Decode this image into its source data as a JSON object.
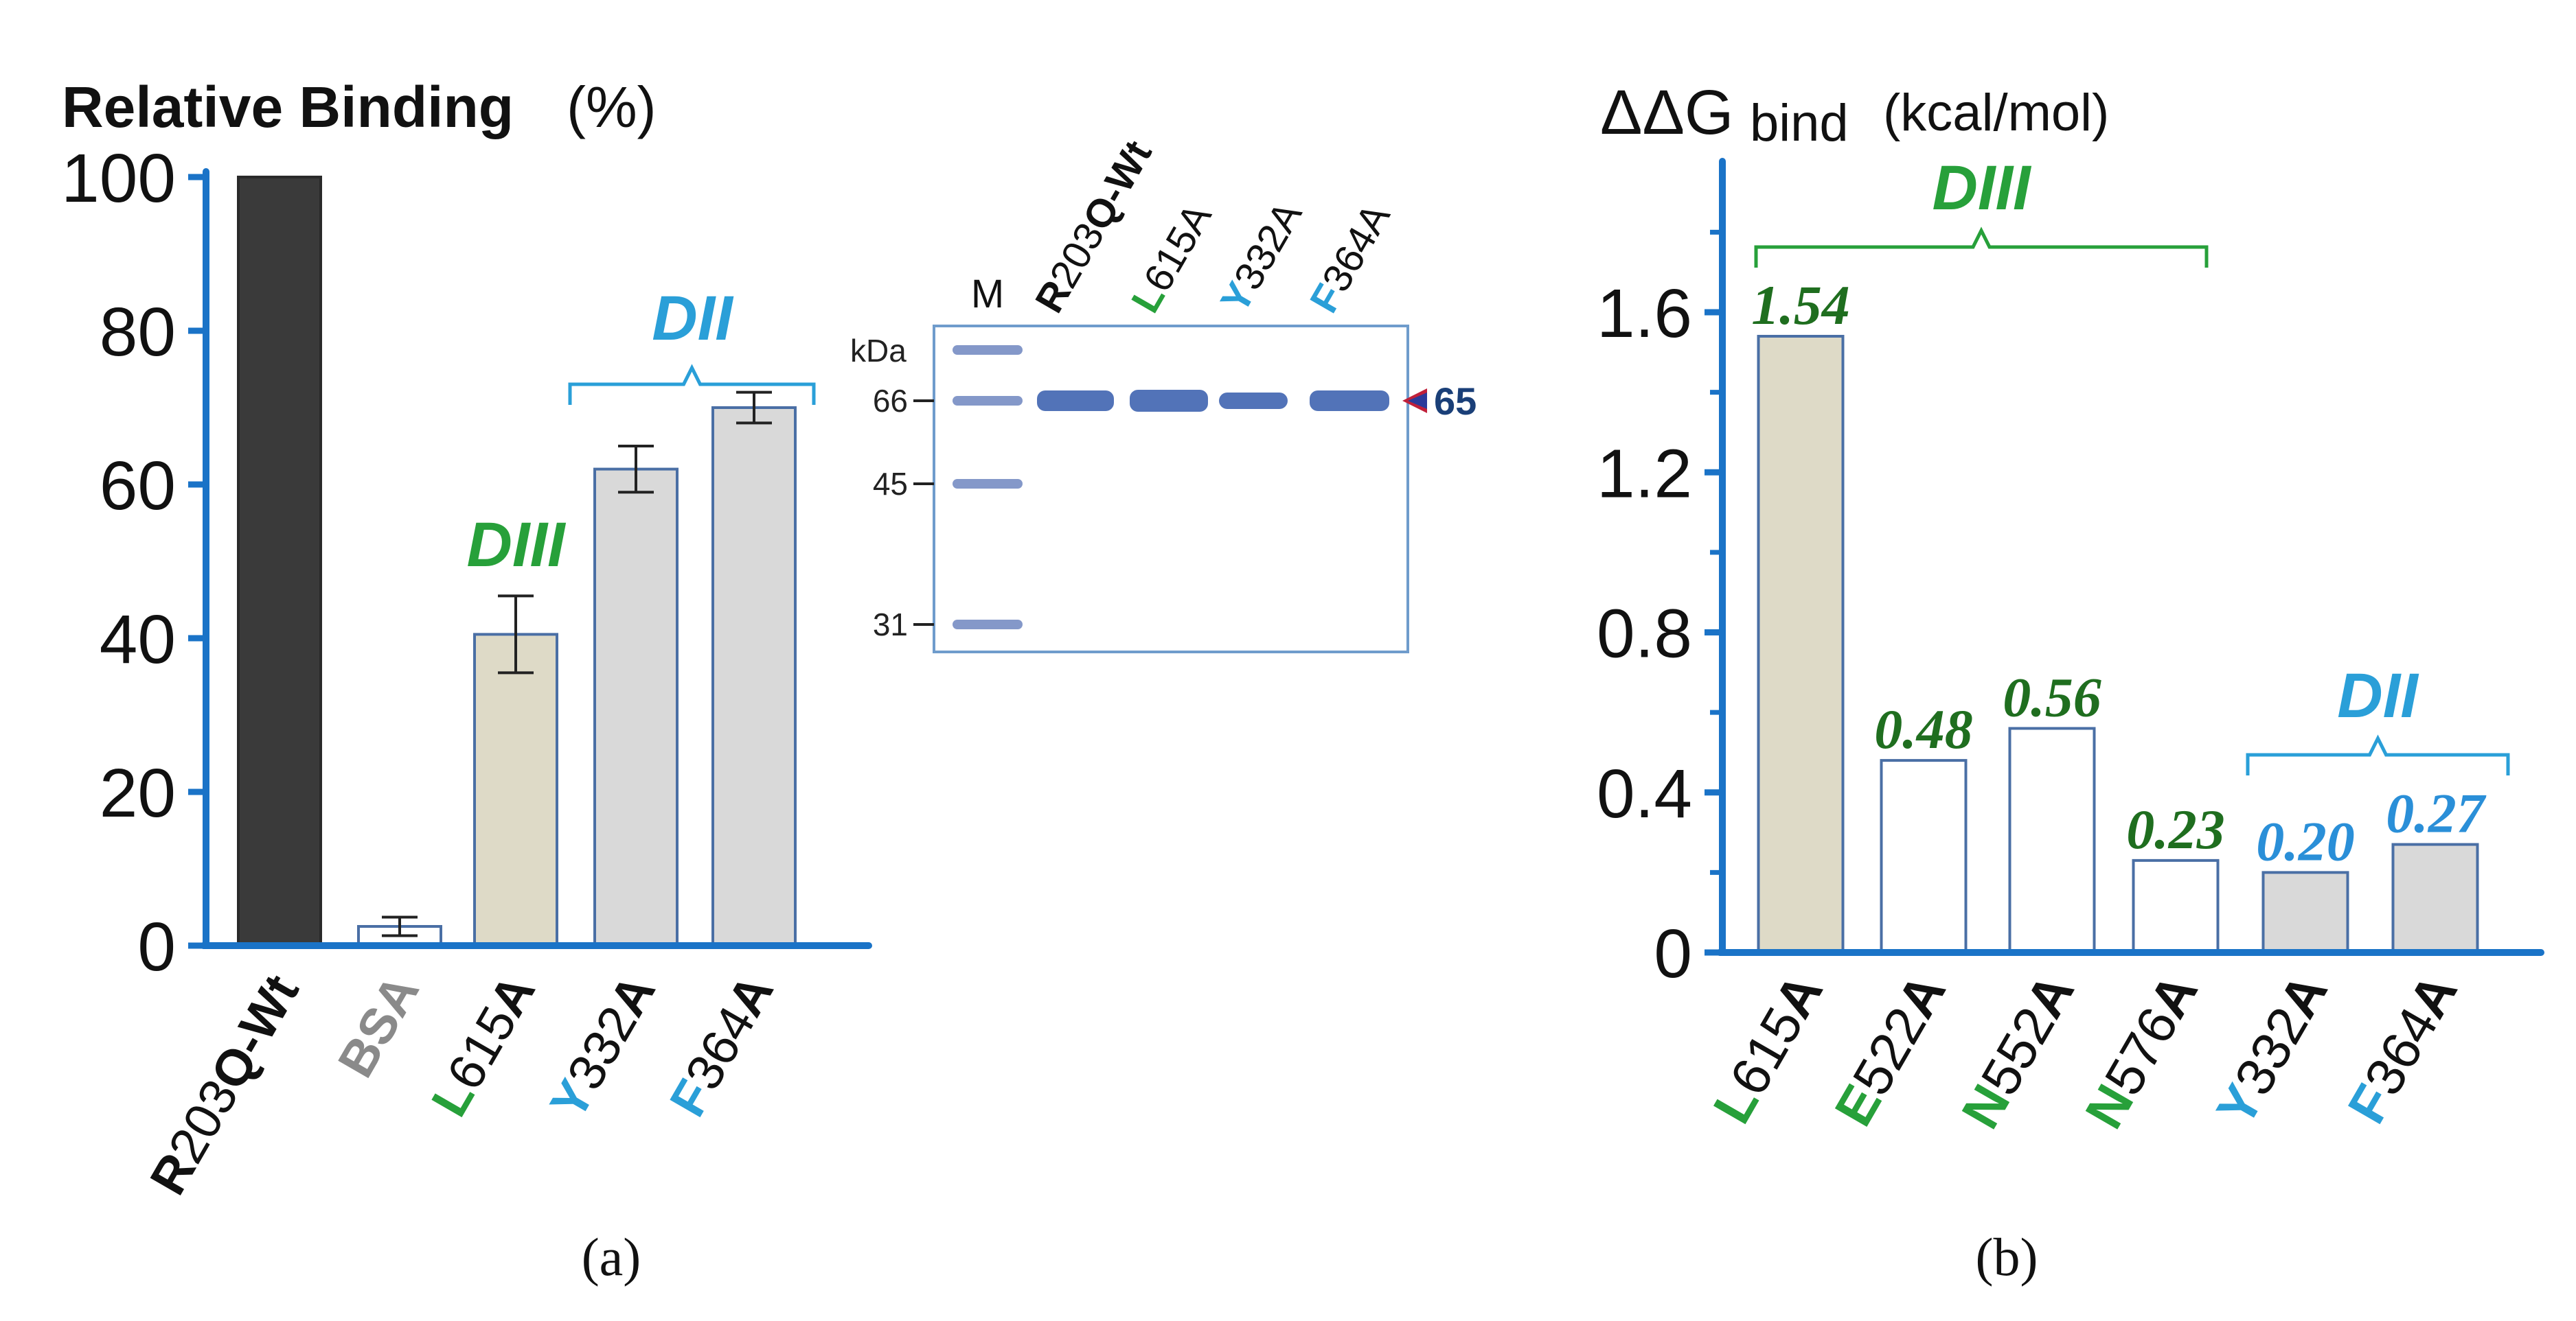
{
  "colors": {
    "axis": "#1a73c7",
    "dii": "#2a9fd8",
    "diii": "#27a03a",
    "diii_value": "#1f6e1f",
    "dii_value": "#2a8fd8",
    "wt_bar": "#3a3a3a",
    "diii_bar": "#dedac7",
    "dii_bar": "#d9d9d9",
    "bar_edge": "#4a6fa5",
    "gel_band": "#3f64b0",
    "marker_65": "#1a3f78"
  },
  "chart_data": [
    {
      "panel": "a",
      "type": "bar",
      "title_bold": "Relative Binding",
      "title_unit": "(%)",
      "ylim": [
        0,
        100
      ],
      "yticks": [
        "0",
        "20",
        "40",
        "60",
        "80",
        "100"
      ],
      "categories": [
        {
          "prefix": "R",
          "middle": "203",
          "suffix": "Q-Wt",
          "color_key": "black"
        },
        {
          "prefix": "BSA",
          "middle": "",
          "suffix": "",
          "color_key": "gray"
        },
        {
          "prefix": "L",
          "middle": "615",
          "suffix": "A",
          "color_key": "diii"
        },
        {
          "prefix": "Y",
          "middle": "332",
          "suffix": "A",
          "color_key": "dii"
        },
        {
          "prefix": "F",
          "middle": "364",
          "suffix": "A",
          "color_key": "dii"
        }
      ],
      "values": [
        100,
        2.5,
        40.5,
        62,
        70
      ],
      "errors": [
        0,
        1.2,
        5,
        3,
        2
      ],
      "groups": [
        {
          "label": "DIII",
          "color_key": "diii",
          "members": [
            2
          ]
        },
        {
          "label": "DII",
          "color_key": "dii",
          "members": [
            3,
            4
          ]
        }
      ]
    },
    {
      "panel": "a-inset",
      "type": "gel",
      "lanes": [
        "M",
        "R203Q-Wt",
        "L615A",
        "Y332A",
        "F364A"
      ],
      "lane_labels": [
        {
          "prefix": "M",
          "middle": "",
          "suffix": "",
          "color_key": "black"
        },
        {
          "prefix": "R",
          "middle": "203",
          "suffix": "Q-Wt",
          "color_key": "black"
        },
        {
          "prefix": "L",
          "middle": "615A",
          "suffix": "",
          "color_key": "diii"
        },
        {
          "prefix": "Y",
          "middle": "332A",
          "suffix": "",
          "color_key": "dii"
        },
        {
          "prefix": "F",
          "middle": "364A",
          "suffix": "",
          "color_key": "dii"
        }
      ],
      "unit_label": "kDa",
      "marker_sizes_kda": [
        "66",
        "45",
        "31"
      ],
      "band_label": "65"
    },
    {
      "panel": "b",
      "type": "bar",
      "title_symbol": "ΔΔG",
      "title_sub": "bind",
      "title_unit": "(kcal/mol)",
      "ylim": [
        0,
        1.9
      ],
      "yticks": [
        "0",
        "0.4",
        "0.8",
        "1.2",
        "1.6"
      ],
      "categories": [
        {
          "prefix": "L",
          "middle": "615",
          "suffix": "A",
          "color_key": "diii"
        },
        {
          "prefix": "E",
          "middle": "522",
          "suffix": "A",
          "color_key": "diii"
        },
        {
          "prefix": "N",
          "middle": "552",
          "suffix": "A",
          "color_key": "diii"
        },
        {
          "prefix": "N",
          "middle": "576",
          "suffix": "A",
          "color_key": "diii"
        },
        {
          "prefix": "Y",
          "middle": "332",
          "suffix": "A",
          "color_key": "dii"
        },
        {
          "prefix": "F",
          "middle": "364",
          "suffix": "A",
          "color_key": "dii"
        }
      ],
      "values": [
        1.54,
        0.48,
        0.56,
        0.23,
        0.2,
        0.27
      ],
      "value_labels": [
        "1.54",
        "0.48",
        "0.56",
        "0.23",
        "0.20",
        "0.27"
      ],
      "groups": [
        {
          "label": "DIII",
          "color_key": "diii",
          "members": [
            0,
            1,
            2,
            3
          ]
        },
        {
          "label": "DII",
          "color_key": "dii",
          "members": [
            4,
            5
          ]
        }
      ]
    }
  ],
  "captions": {
    "a": "(a)",
    "b": "(b)"
  }
}
